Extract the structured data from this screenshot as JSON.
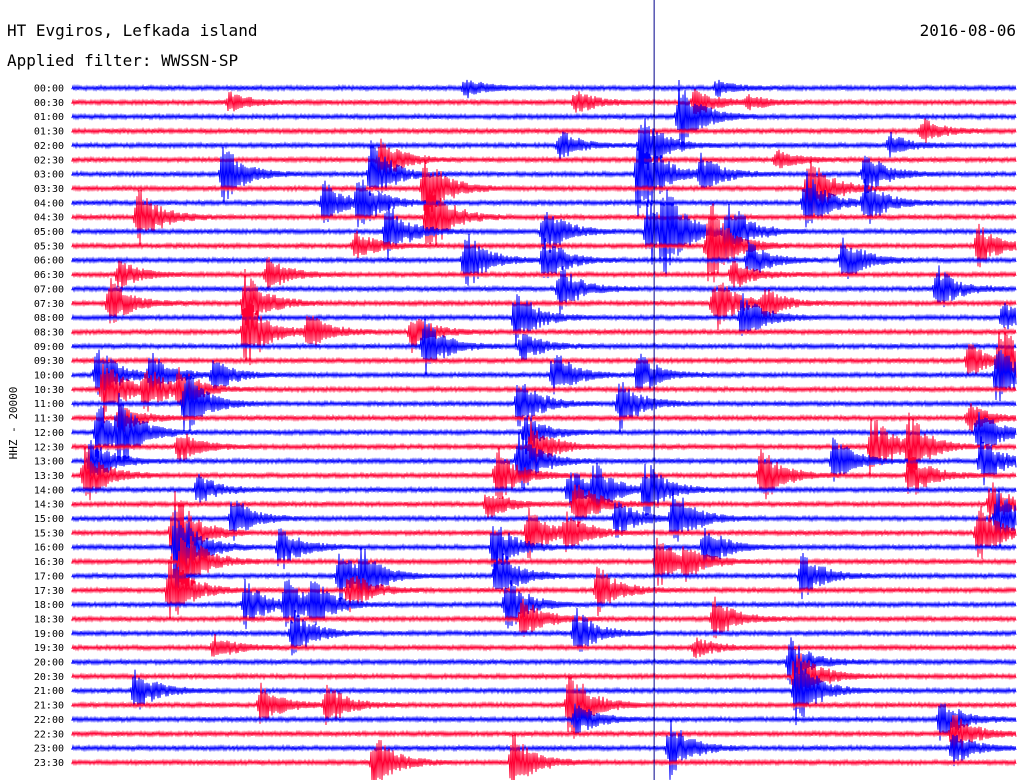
{
  "header": {
    "station": "HT Evgiros, Lefkada island",
    "date": "2016-08-06",
    "filter": "Applied filter: WWSSN-SP",
    "channel_label": "HHZ - 20000"
  },
  "colors": {
    "row_a": "#0000ff",
    "row_b": "#ff0033",
    "marker": "#00008b"
  },
  "chart_data": {
    "type": "line",
    "title": "HT Evgiros, Lefkada island",
    "subtitle": "Applied filter: WWSSN-SP",
    "ylabel": "HHZ - 20000",
    "row_interval_minutes": 30,
    "time_labels": [
      "00:00",
      "00:30",
      "01:00",
      "01:30",
      "02:00",
      "02:30",
      "03:00",
      "03:30",
      "04:00",
      "04:30",
      "05:00",
      "05:30",
      "06:00",
      "06:30",
      "07:00",
      "07:30",
      "08:00",
      "08:30",
      "09:00",
      "09:30",
      "10:00",
      "10:30",
      "11:00",
      "11:30",
      "12:00",
      "12:30",
      "13:00",
      "13:30",
      "14:00",
      "14:30",
      "15:00",
      "15:30",
      "16:00",
      "16:30",
      "17:00",
      "17:30",
      "18:00",
      "18:30",
      "19:00",
      "19:30",
      "20:00",
      "20:30",
      "21:00",
      "21:30",
      "22:00",
      "22:30",
      "23:00",
      "23:30"
    ],
    "alternating_colors": [
      "#0000ff",
      "#ff0033"
    ],
    "grid": false,
    "marker_minute": 18.5,
    "events": [
      {
        "row": 0,
        "minute": 12.5,
        "amp": 0.4
      },
      {
        "row": 0,
        "minute": 20.5,
        "amp": 0.3
      },
      {
        "row": 1,
        "minute": 19.8,
        "amp": 0.6
      },
      {
        "row": 1,
        "minute": 16,
        "amp": 0.5
      },
      {
        "row": 1,
        "minute": 5,
        "amp": 0.4
      },
      {
        "row": 1,
        "minute": 21.5,
        "amp": 0.3
      },
      {
        "row": 2,
        "minute": 19.3,
        "amp": 1.5
      },
      {
        "row": 3,
        "minute": 27,
        "amp": 0.5
      },
      {
        "row": 4,
        "minute": 15.5,
        "amp": 0.6
      },
      {
        "row": 4,
        "minute": 18.1,
        "amp": 1.3
      },
      {
        "row": 4,
        "minute": 26,
        "amp": 0.5
      },
      {
        "row": 5,
        "minute": 9.8,
        "amp": 0.9
      },
      {
        "row": 5,
        "minute": 22.4,
        "amp": 0.4
      },
      {
        "row": 6,
        "minute": 4.8,
        "amp": 1.2
      },
      {
        "row": 6,
        "minute": 9.5,
        "amp": 1.3
      },
      {
        "row": 6,
        "minute": 18.0,
        "amp": 2.2
      },
      {
        "row": 6,
        "minute": 20.0,
        "amp": 0.8
      },
      {
        "row": 6,
        "minute": 25.2,
        "amp": 0.9
      },
      {
        "row": 7,
        "minute": 11.2,
        "amp": 1.6
      },
      {
        "row": 7,
        "minute": 23.4,
        "amp": 1.6
      },
      {
        "row": 8,
        "minute": 8.0,
        "amp": 0.9
      },
      {
        "row": 8,
        "minute": 9.1,
        "amp": 1.1
      },
      {
        "row": 8,
        "minute": 23.3,
        "amp": 1.3
      },
      {
        "row": 8,
        "minute": 25.2,
        "amp": 1.0
      },
      {
        "row": 9,
        "minute": 2.1,
        "amp": 1.3
      },
      {
        "row": 9,
        "minute": 11.3,
        "amp": 1.7
      },
      {
        "row": 10,
        "minute": 10.0,
        "amp": 1.2
      },
      {
        "row": 10,
        "minute": 15.0,
        "amp": 1.1
      },
      {
        "row": 10,
        "minute": 18.3,
        "amp": 1.5
      },
      {
        "row": 10,
        "minute": 18.8,
        "amp": 1.6
      },
      {
        "row": 10,
        "minute": 20.8,
        "amp": 1.4
      },
      {
        "row": 11,
        "minute": 9.0,
        "amp": 0.6
      },
      {
        "row": 11,
        "minute": 20.2,
        "amp": 1.0
      },
      {
        "row": 11,
        "minute": 28.8,
        "amp": 0.9
      },
      {
        "row": 11,
        "minute": 20.3,
        "amp": 1.0
      },
      {
        "row": 12,
        "minute": 12.5,
        "amp": 1.3
      },
      {
        "row": 12,
        "minute": 15.0,
        "amp": 1.0
      },
      {
        "row": 12,
        "minute": 21.5,
        "amp": 0.8
      },
      {
        "row": 12,
        "minute": 24.5,
        "amp": 1.0
      },
      {
        "row": 13,
        "minute": 1.5,
        "amp": 0.6
      },
      {
        "row": 13,
        "minute": 6.2,
        "amp": 0.7
      },
      {
        "row": 13,
        "minute": 21.0,
        "amp": 0.6
      },
      {
        "row": 14,
        "minute": 15.5,
        "amp": 1.0
      },
      {
        "row": 14,
        "minute": 27.5,
        "amp": 0.9
      },
      {
        "row": 15,
        "minute": 1.2,
        "amp": 1.0
      },
      {
        "row": 15,
        "minute": 5.5,
        "amp": 1.3
      },
      {
        "row": 15,
        "minute": 20.4,
        "amp": 1.2
      },
      {
        "row": 15,
        "minute": 22.0,
        "amp": 0.6
      },
      {
        "row": 16,
        "minute": 14.1,
        "amp": 1.2
      },
      {
        "row": 16,
        "minute": 21.3,
        "amp": 1.0
      },
      {
        "row": 16,
        "minute": 29.6,
        "amp": 0.6
      },
      {
        "row": 17,
        "minute": 5.5,
        "amp": 1.6
      },
      {
        "row": 17,
        "minute": 7.5,
        "amp": 0.8
      },
      {
        "row": 17,
        "minute": 10.8,
        "amp": 0.8
      },
      {
        "row": 18,
        "minute": 11.2,
        "amp": 1.2
      },
      {
        "row": 18,
        "minute": 14.3,
        "amp": 0.6
      },
      {
        "row": 19,
        "minute": 29.5,
        "amp": 1.6
      },
      {
        "row": 19,
        "minute": 28.5,
        "amp": 0.7
      },
      {
        "row": 20,
        "minute": 0.8,
        "amp": 1.2
      },
      {
        "row": 20,
        "minute": 2.5,
        "amp": 0.9
      },
      {
        "row": 20,
        "minute": 4.5,
        "amp": 0.7
      },
      {
        "row": 20,
        "minute": 15.3,
        "amp": 1.0
      },
      {
        "row": 20,
        "minute": 18.0,
        "amp": 0.9
      },
      {
        "row": 20,
        "minute": 29.4,
        "amp": 1.3
      },
      {
        "row": 21,
        "minute": 1.0,
        "amp": 1.3
      },
      {
        "row": 21,
        "minute": 2.3,
        "amp": 1.0
      },
      {
        "row": 21,
        "minute": 3.4,
        "amp": 0.8
      },
      {
        "row": 22,
        "minute": 3.6,
        "amp": 1.4
      },
      {
        "row": 22,
        "minute": 14.2,
        "amp": 1.2
      },
      {
        "row": 22,
        "minute": 17.4,
        "amp": 1.1
      },
      {
        "row": 23,
        "minute": 1.5,
        "amp": 0.6
      },
      {
        "row": 23,
        "minute": 28.5,
        "amp": 0.6
      },
      {
        "row": 24,
        "minute": 0.8,
        "amp": 1.2
      },
      {
        "row": 24,
        "minute": 1.5,
        "amp": 1.3
      },
      {
        "row": 24,
        "minute": 14.4,
        "amp": 0.8
      },
      {
        "row": 24,
        "minute": 28.8,
        "amp": 1.1
      },
      {
        "row": 25,
        "minute": 3.4,
        "amp": 0.7
      },
      {
        "row": 25,
        "minute": 14.6,
        "amp": 1.0
      },
      {
        "row": 25,
        "minute": 25.4,
        "amp": 1.4
      },
      {
        "row": 25,
        "minute": 26.6,
        "amp": 1.2
      },
      {
        "row": 26,
        "minute": 0.6,
        "amp": 1.0
      },
      {
        "row": 26,
        "minute": 14.2,
        "amp": 1.4
      },
      {
        "row": 26,
        "minute": 24.2,
        "amp": 1.0
      },
      {
        "row": 26,
        "minute": 28.9,
        "amp": 1.0
      },
      {
        "row": 27,
        "minute": 0.4,
        "amp": 1.2
      },
      {
        "row": 27,
        "minute": 13.5,
        "amp": 1.2
      },
      {
        "row": 27,
        "minute": 21.9,
        "amp": 1.3
      },
      {
        "row": 27,
        "minute": 26.6,
        "amp": 1.0
      },
      {
        "row": 28,
        "minute": 4.0,
        "amp": 0.6
      },
      {
        "row": 28,
        "minute": 15.8,
        "amp": 0.9
      },
      {
        "row": 28,
        "minute": 16.6,
        "amp": 1.0
      },
      {
        "row": 28,
        "minute": 18.2,
        "amp": 1.2
      },
      {
        "row": 29,
        "minute": 13.2,
        "amp": 0.6
      },
      {
        "row": 29,
        "minute": 16.0,
        "amp": 1.0
      },
      {
        "row": 29,
        "minute": 29.2,
        "amp": 0.9
      },
      {
        "row": 30,
        "minute": 5.1,
        "amp": 0.9
      },
      {
        "row": 30,
        "minute": 17.3,
        "amp": 0.8
      },
      {
        "row": 30,
        "minute": 19.1,
        "amp": 1.3
      },
      {
        "row": 30,
        "minute": 29.4,
        "amp": 1.2
      },
      {
        "row": 31,
        "minute": 3.2,
        "amp": 2.0
      },
      {
        "row": 31,
        "minute": 14.5,
        "amp": 1.1
      },
      {
        "row": 31,
        "minute": 15.7,
        "amp": 0.8
      },
      {
        "row": 31,
        "minute": 28.8,
        "amp": 1.2
      },
      {
        "row": 32,
        "minute": 3.3,
        "amp": 2.0
      },
      {
        "row": 32,
        "minute": 6.6,
        "amp": 1.0
      },
      {
        "row": 32,
        "minute": 13.4,
        "amp": 1.1
      },
      {
        "row": 32,
        "minute": 20.1,
        "amp": 0.9
      },
      {
        "row": 33,
        "minute": 3.5,
        "amp": 1.6
      },
      {
        "row": 33,
        "minute": 18.6,
        "amp": 1.1
      },
      {
        "row": 33,
        "minute": 19.5,
        "amp": 0.6
      },
      {
        "row": 34,
        "minute": 8.5,
        "amp": 1.0
      },
      {
        "row": 34,
        "minute": 9.2,
        "amp": 0.9
      },
      {
        "row": 34,
        "minute": 23.2,
        "amp": 1.0
      },
      {
        "row": 34,
        "minute": 13.5,
        "amp": 1.2
      },
      {
        "row": 35,
        "minute": 3.1,
        "amp": 1.6
      },
      {
        "row": 35,
        "minute": 8.8,
        "amp": 0.9
      },
      {
        "row": 35,
        "minute": 16.7,
        "amp": 1.0
      },
      {
        "row": 36,
        "minute": 5.5,
        "amp": 1.0
      },
      {
        "row": 36,
        "minute": 6.8,
        "amp": 1.0
      },
      {
        "row": 36,
        "minute": 7.6,
        "amp": 0.9
      },
      {
        "row": 36,
        "minute": 13.8,
        "amp": 1.2
      },
      {
        "row": 37,
        "minute": 14.3,
        "amp": 0.9
      },
      {
        "row": 37,
        "minute": 20.4,
        "amp": 0.9
      },
      {
        "row": 38,
        "minute": 7.0,
        "amp": 1.0
      },
      {
        "row": 38,
        "minute": 16.0,
        "amp": 1.0
      },
      {
        "row": 39,
        "minute": 4.5,
        "amp": 0.5
      },
      {
        "row": 39,
        "minute": 19.8,
        "amp": 0.4
      },
      {
        "row": 40,
        "minute": 22.8,
        "amp": 1.0
      },
      {
        "row": 41,
        "minute": 23.0,
        "amp": 1.3
      },
      {
        "row": 42,
        "minute": 2.0,
        "amp": 0.9
      },
      {
        "row": 42,
        "minute": 23.0,
        "amp": 1.6
      },
      {
        "row": 43,
        "minute": 6.0,
        "amp": 0.8
      },
      {
        "row": 43,
        "minute": 8.1,
        "amp": 0.9
      },
      {
        "row": 43,
        "minute": 15.8,
        "amp": 1.6
      },
      {
        "row": 44,
        "minute": 16.0,
        "amp": 0.7
      },
      {
        "row": 44,
        "minute": 27.6,
        "amp": 0.9
      },
      {
        "row": 45,
        "minute": 28.0,
        "amp": 0.9
      },
      {
        "row": 46,
        "minute": 19.0,
        "amp": 1.2
      },
      {
        "row": 46,
        "minute": 28.0,
        "amp": 0.7
      },
      {
        "row": 47,
        "minute": 9.6,
        "amp": 1.2
      },
      {
        "row": 47,
        "minute": 14.0,
        "amp": 1.2
      }
    ]
  }
}
